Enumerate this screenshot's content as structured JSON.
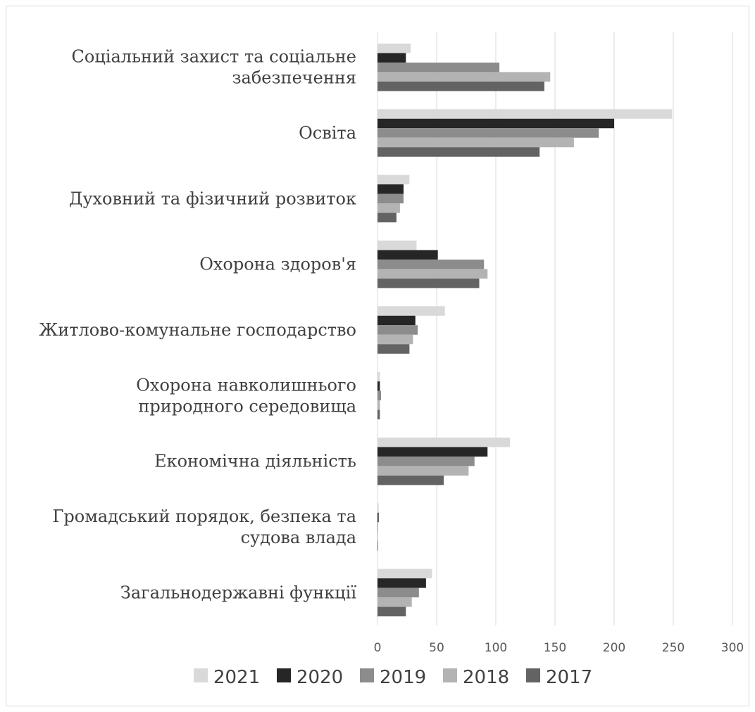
{
  "chart_data": {
    "type": "bar",
    "orientation": "horizontal",
    "categories": [
      [
        "Соціальний захист та соціальне",
        "забезпечення"
      ],
      [
        "Освіта"
      ],
      [
        "Духовний та фізичний розвиток"
      ],
      [
        "Охорона здоров'я"
      ],
      [
        "Житлово-комунальне господарство"
      ],
      [
        "Охорона навколишнього",
        "природного середовища"
      ],
      [
        "Економічна діяльність"
      ],
      [
        "Громадський порядок, безпека та",
        "судова влада"
      ],
      [
        "Загальнодержавні функції"
      ]
    ],
    "series": [
      {
        "name": "2021",
        "color": "#d9d9d9",
        "values": [
          28,
          249,
          27,
          33,
          57,
          2,
          112,
          1,
          46
        ]
      },
      {
        "name": "2020",
        "color": "#262626",
        "values": [
          24,
          200,
          22,
          51,
          32,
          2,
          93,
          1,
          41
        ]
      },
      {
        "name": "2019",
        "color": "#8c8c8c",
        "values": [
          103,
          187,
          22,
          90,
          34,
          3,
          82,
          0.5,
          35
        ]
      },
      {
        "name": "2018",
        "color": "#b3b3b3",
        "values": [
          146,
          166,
          19,
          93,
          30,
          2,
          77,
          0.5,
          29
        ]
      },
      {
        "name": "2017",
        "color": "#636363",
        "values": [
          141,
          137,
          16,
          86,
          27,
          2,
          56,
          0.5,
          24
        ]
      }
    ],
    "xticks": [
      0,
      50,
      100,
      150,
      200,
      250,
      300
    ],
    "xlim": [
      0,
      300
    ],
    "grid": true,
    "legend_position": "bottom",
    "legend_order": [
      "2021",
      "2020",
      "2019",
      "2018",
      "2017"
    ],
    "title": "",
    "xlabel": "",
    "ylabel": ""
  }
}
